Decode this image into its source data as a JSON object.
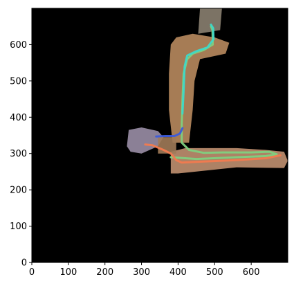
{
  "chart_data": {
    "type": "image",
    "background_color": "#000000",
    "x_range": [
      0,
      700
    ],
    "y_range": [
      0,
      700
    ],
    "x_ticks": [
      0,
      100,
      200,
      300,
      400,
      500,
      600
    ],
    "y_ticks": [
      0,
      100,
      200,
      300,
      400,
      500,
      600
    ],
    "x_tick_labels": [
      "0",
      "100",
      "200",
      "300",
      "400",
      "500",
      "600"
    ],
    "y_tick_labels": [
      "0",
      "100",
      "200",
      "300",
      "400",
      "500",
      "600"
    ],
    "grid": false,
    "map_regions": [
      {
        "name": "vertical-corridor",
        "color": "#b88a5e",
        "points": [
          [
            385,
            330
          ],
          [
            375,
            420
          ],
          [
            375,
            520
          ],
          [
            380,
            600
          ],
          [
            395,
            620
          ],
          [
            440,
            630
          ],
          [
            500,
            620
          ],
          [
            540,
            605
          ],
          [
            530,
            575
          ],
          [
            460,
            560
          ],
          [
            445,
            500
          ],
          [
            440,
            420
          ],
          [
            430,
            330
          ]
        ]
      },
      {
        "name": "top-room",
        "color": "#8a8070",
        "points": [
          [
            455,
            630
          ],
          [
            460,
            700
          ],
          [
            520,
            700
          ],
          [
            515,
            640
          ]
        ]
      },
      {
        "name": "horizontal-corridor",
        "color": "#c09070",
        "points": [
          [
            380,
            245
          ],
          [
            380,
            305
          ],
          [
            420,
            315
          ],
          [
            560,
            315
          ],
          [
            640,
            310
          ],
          [
            690,
            305
          ],
          [
            700,
            280
          ],
          [
            690,
            260
          ],
          [
            560,
            262
          ],
          [
            400,
            245
          ]
        ]
      },
      {
        "name": "left-room",
        "color": "#9a8ea6",
        "points": [
          [
            260,
            320
          ],
          [
            265,
            365
          ],
          [
            300,
            372
          ],
          [
            345,
            362
          ],
          [
            360,
            345
          ],
          [
            345,
            320
          ],
          [
            300,
            300
          ],
          [
            270,
            305
          ]
        ]
      },
      {
        "name": "corridor-link",
        "color": "#a07a58",
        "points": [
          [
            345,
            300
          ],
          [
            345,
            345
          ],
          [
            395,
            345
          ],
          [
            395,
            300
          ]
        ]
      }
    ],
    "series": [
      {
        "color": "#7fd07f",
        "points": [
          [
            490,
            650
          ],
          [
            494,
            640
          ],
          [
            495,
            600
          ],
          [
            470,
            585
          ],
          [
            440,
            575
          ],
          [
            425,
            560
          ],
          [
            415,
            520
          ],
          [
            412,
            450
          ],
          [
            410,
            380
          ],
          [
            410,
            330
          ],
          [
            430,
            310
          ],
          [
            470,
            302
          ],
          [
            520,
            303
          ],
          [
            600,
            303
          ],
          [
            650,
            305
          ],
          [
            670,
            298
          ],
          [
            640,
            293
          ],
          [
            560,
            290
          ],
          [
            450,
            285
          ],
          [
            380,
            290
          ]
        ]
      },
      {
        "color": "#f27a4f",
        "points": [
          [
            310,
            325
          ],
          [
            330,
            323
          ],
          [
            360,
            310
          ],
          [
            380,
            300
          ],
          [
            395,
            282
          ],
          [
            410,
            275
          ],
          [
            470,
            278
          ],
          [
            560,
            282
          ],
          [
            640,
            287
          ],
          [
            680,
            295
          ]
        ]
      },
      {
        "color": "#3b5bdb",
        "points": [
          [
            340,
            347
          ],
          [
            365,
            348
          ],
          [
            390,
            348
          ],
          [
            405,
            355
          ],
          [
            412,
            370
          ]
        ]
      },
      {
        "color": "#3dd9c9",
        "points": [
          [
            490,
            655
          ],
          [
            496,
            645
          ],
          [
            497,
            615
          ],
          [
            480,
            592
          ],
          [
            450,
            582
          ],
          [
            425,
            570
          ],
          [
            418,
            540
          ],
          [
            415,
            470
          ],
          [
            412,
            410
          ]
        ]
      }
    ]
  }
}
